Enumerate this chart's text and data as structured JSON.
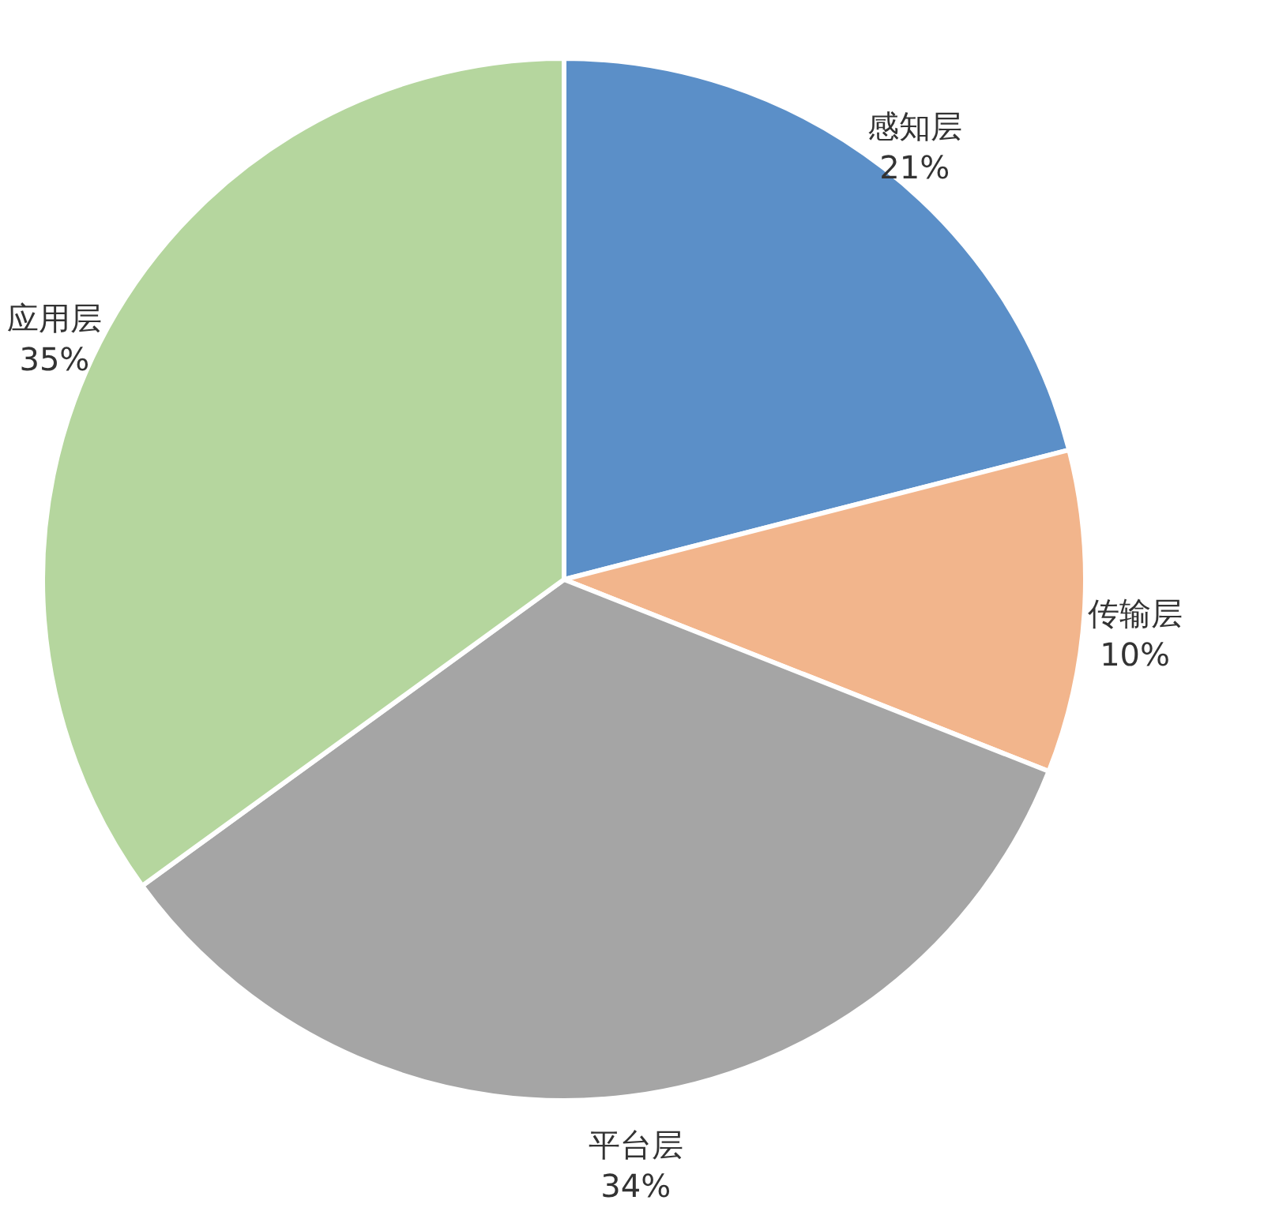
{
  "chart_data": {
    "type": "pie",
    "categories": [
      "感知层",
      "传输层",
      "平台层",
      "应用层"
    ],
    "values": [
      21,
      10,
      34,
      35
    ],
    "value_labels": [
      "21%",
      "10%",
      "34%",
      "35%"
    ],
    "colors": [
      "#5b8fc8",
      "#f2b58c",
      "#a5a5a5",
      "#b5d69e"
    ],
    "legend": false
  }
}
